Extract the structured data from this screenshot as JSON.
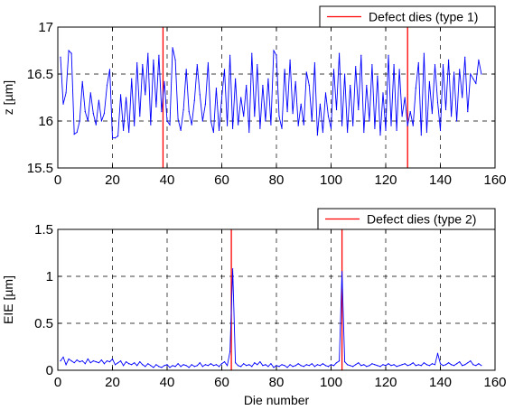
{
  "chart_data": [
    {
      "type": "line",
      "xlabel": "",
      "ylabel": "z [µm]",
      "xlim": [
        0,
        160
      ],
      "ylim": [
        15.5,
        17
      ],
      "xticks": [
        0,
        20,
        40,
        60,
        80,
        100,
        120,
        140,
        160
      ],
      "yticks": [
        15.5,
        16,
        16.5,
        17
      ],
      "grid": true,
      "legend_position": "top-right",
      "series": [
        {
          "color": "#0000ff",
          "x": [
            1,
            2,
            3,
            4,
            5,
            6,
            7,
            8,
            9,
            10,
            11,
            12,
            13,
            14,
            15,
            16,
            17,
            18,
            19,
            20,
            21,
            22,
            23,
            24,
            25,
            26,
            27,
            28,
            29,
            30,
            31,
            32,
            33,
            34,
            35,
            36,
            37,
            38,
            39,
            40,
            41,
            42,
            43,
            44,
            45,
            46,
            47,
            48,
            49,
            50,
            51,
            52,
            53,
            54,
            55,
            56,
            57,
            58,
            59,
            60,
            61,
            62,
            63,
            64,
            65,
            66,
            67,
            68,
            69,
            70,
            71,
            72,
            73,
            74,
            75,
            76,
            77,
            78,
            79,
            80,
            81,
            82,
            83,
            84,
            85,
            86,
            87,
            88,
            89,
            90,
            91,
            92,
            93,
            94,
            95,
            96,
            97,
            98,
            99,
            100,
            101,
            102,
            103,
            104,
            105,
            106,
            107,
            108,
            109,
            110,
            111,
            112,
            113,
            114,
            115,
            116,
            117,
            118,
            119,
            120,
            121,
            122,
            123,
            124,
            125,
            126,
            127,
            128,
            129,
            130,
            131,
            132,
            133,
            134,
            135,
            136,
            137,
            138,
            139,
            140,
            141,
            142,
            143,
            144,
            145,
            146,
            147,
            148,
            149,
            150,
            151,
            152,
            153,
            154,
            155
          ],
          "y": [
            16.68,
            16.18,
            16.3,
            16.75,
            16.72,
            15.86,
            15.88,
            16.0,
            16.42,
            16.1,
            16.0,
            16.3,
            16.08,
            15.96,
            16.22,
            16.0,
            16.08,
            16.38,
            16.55,
            15.82,
            15.82,
            15.84,
            16.28,
            15.9,
            16.25,
            15.88,
            16.45,
            15.95,
            16.62,
            16.05,
            16.6,
            16.28,
            16.72,
            15.96,
            16.65,
            16.15,
            16.7,
            16.1,
            16.42,
            16.0,
            15.96,
            16.78,
            16.65,
            16.02,
            15.9,
            16.12,
            16.55,
            16.1,
            15.96,
            16.22,
            16.6,
            16.28,
            16.0,
            16.18,
            16.62,
            16.0,
            15.88,
            16.35,
            15.9,
            16.25,
            16.55,
            15.95,
            16.7,
            15.92,
            16.45,
            15.96,
            16.25,
            16.05,
            16.38,
            15.88,
            16.72,
            16.05,
            16.6,
            15.92,
            16.38,
            16.0,
            16.45,
            15.96,
            16.75,
            16.7,
            16.05,
            15.92,
            16.55,
            16.1,
            16.65,
            16.08,
            16.42,
            15.95,
            16.18,
            15.96,
            16.52,
            16.38,
            16.0,
            16.62,
            15.85,
            16.18,
            15.88,
            16.3,
            16.05,
            15.92,
            16.55,
            16.12,
            16.72,
            15.95,
            16.5,
            15.88,
            16.38,
            15.95,
            16.58,
            16.12,
            16.7,
            15.88,
            16.38,
            16.0,
            16.6,
            15.92,
            16.48,
            15.85,
            16.3,
            15.9,
            16.7,
            15.95,
            16.6,
            15.9,
            16.55,
            16.05,
            16.25,
            15.95,
            16.1,
            15.95,
            16.35,
            16.62,
            15.85,
            16.72,
            15.88,
            16.42,
            16.08,
            16.6,
            16.2,
            15.9,
            16.6,
            16.12,
            16.65,
            16.05,
            16.52,
            16.0,
            16.55,
            16.25,
            16.68,
            16.1,
            16.5,
            16.45,
            16.4,
            16.65,
            16.5
          ]
        }
      ],
      "vlines": [
        {
          "name": "Defect dies (type 1)",
          "color": "#ff0000",
          "x": [
            38.5,
            128
          ]
        }
      ]
    },
    {
      "type": "line",
      "xlabel": "Die number",
      "ylabel": "EIE [µm]",
      "xlim": [
        0,
        160
      ],
      "ylim": [
        0,
        1.5
      ],
      "xticks": [
        0,
        20,
        40,
        60,
        80,
        100,
        120,
        140,
        160
      ],
      "yticks": [
        0,
        0.5,
        1,
        1.5
      ],
      "grid": true,
      "legend_position": "top-right",
      "series": [
        {
          "color": "#0000ff",
          "x": [
            1,
            2,
            3,
            4,
            5,
            6,
            7,
            8,
            9,
            10,
            11,
            12,
            13,
            14,
            15,
            16,
            17,
            18,
            19,
            20,
            21,
            22,
            23,
            24,
            25,
            26,
            27,
            28,
            29,
            30,
            31,
            32,
            33,
            34,
            35,
            36,
            37,
            38,
            39,
            40,
            41,
            42,
            43,
            44,
            45,
            46,
            47,
            48,
            49,
            50,
            51,
            52,
            53,
            54,
            55,
            56,
            57,
            58,
            59,
            60,
            61,
            62,
            63,
            64,
            65,
            66,
            67,
            68,
            69,
            70,
            71,
            72,
            73,
            74,
            75,
            76,
            77,
            78,
            79,
            80,
            81,
            82,
            83,
            84,
            85,
            86,
            87,
            88,
            89,
            90,
            91,
            92,
            93,
            94,
            95,
            96,
            97,
            98,
            99,
            100,
            101,
            102,
            103,
            104,
            105,
            106,
            107,
            108,
            109,
            110,
            111,
            112,
            113,
            114,
            115,
            116,
            117,
            118,
            119,
            120,
            121,
            122,
            123,
            124,
            125,
            126,
            127,
            128,
            129,
            130,
            131,
            132,
            133,
            134,
            135,
            136,
            137,
            138,
            139,
            140,
            141,
            142,
            143,
            144,
            145,
            146,
            147,
            148,
            149,
            150,
            151,
            152,
            153,
            154,
            155
          ],
          "y": [
            0.1,
            0.14,
            0.06,
            0.12,
            0.1,
            0.08,
            0.11,
            0.09,
            0.1,
            0.07,
            0.12,
            0.08,
            0.1,
            0.09,
            0.08,
            0.11,
            0.07,
            0.1,
            0.09,
            0.12,
            0.06,
            0.08,
            0.1,
            0.05,
            0.09,
            0.07,
            0.06,
            0.08,
            0.05,
            0.09,
            0.06,
            0.04,
            0.07,
            0.05,
            0.03,
            0.06,
            0.04,
            0.03,
            0.05,
            0.06,
            0.03,
            0.05,
            0.04,
            0.07,
            0.04,
            0.06,
            0.05,
            0.03,
            0.06,
            0.04,
            0.05,
            0.08,
            0.04,
            0.06,
            0.05,
            0.07,
            0.05,
            0.06,
            0.04,
            0.07,
            0.09,
            0.05,
            0.2,
            1.08,
            0.08,
            0.05,
            0.04,
            0.07,
            0.05,
            0.06,
            0.04,
            0.08,
            0.06,
            0.09,
            0.05,
            0.06,
            0.04,
            0.07,
            0.03,
            0.05,
            0.04,
            0.06,
            0.05,
            0.03,
            0.06,
            0.04,
            0.05,
            0.07,
            0.05,
            0.04,
            0.06,
            0.05,
            0.07,
            0.04,
            0.06,
            0.05,
            0.07,
            0.05,
            0.04,
            0.06,
            0.05,
            0.08,
            0.1,
            1.05,
            0.09,
            0.06,
            0.05,
            0.04,
            0.06,
            0.08,
            0.05,
            0.06,
            0.04,
            0.05,
            0.07,
            0.06,
            0.05,
            0.04,
            0.06,
            0.05,
            0.07,
            0.05,
            0.06,
            0.04,
            0.05,
            0.06,
            0.07,
            0.05,
            0.06,
            0.08,
            0.05,
            0.06,
            0.05,
            0.08,
            0.06,
            0.05,
            0.07,
            0.06,
            0.18,
            0.07,
            0.05,
            0.06,
            0.08,
            0.06,
            0.05,
            0.07,
            0.09,
            0.05,
            0.06,
            0.08,
            0.1,
            0.06,
            0.05,
            0.07,
            0.05
          ]
        }
      ],
      "vlines": [
        {
          "name": "Defect dies (type 2)",
          "color": "#ff0000",
          "x": [
            63.5,
            104
          ]
        }
      ]
    }
  ]
}
